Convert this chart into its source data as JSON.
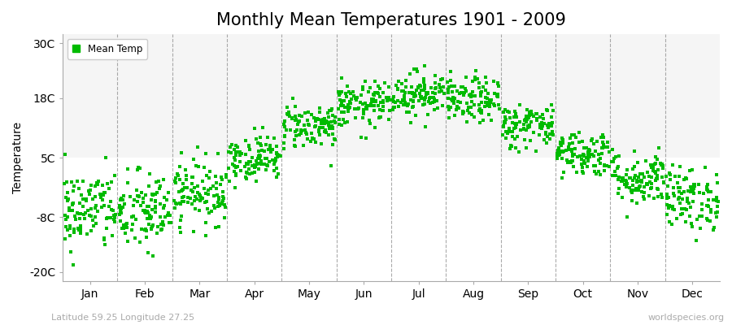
{
  "title": "Monthly Mean Temperatures 1901 - 2009",
  "ylabel": "Temperature",
  "xlabel_months": [
    "Jan",
    "Feb",
    "Mar",
    "Apr",
    "May",
    "Jun",
    "Jul",
    "Aug",
    "Sep",
    "Oct",
    "Nov",
    "Dec"
  ],
  "yticks": [
    -20,
    -8,
    5,
    18,
    30
  ],
  "ytick_labels": [
    "-20C",
    "-8C",
    "5C",
    "18C",
    "30C"
  ],
  "ylim": [
    -22,
    32
  ],
  "dot_color": "#00BB00",
  "dot_size": 6,
  "background_color": "#ffffff",
  "plot_bg_color": "#f5f5f5",
  "legend_label": "Mean Temp",
  "footer_left": "Latitude 59.25 Longitude 27.25",
  "footer_right": "worldspecies.org",
  "title_fontsize": 15,
  "axis_fontsize": 10,
  "monthly_means": [
    -6.5,
    -7.0,
    -2.5,
    5.0,
    12.0,
    16.5,
    19.0,
    17.5,
    12.0,
    6.0,
    0.5,
    -4.0
  ],
  "monthly_stds": [
    4.5,
    4.5,
    3.5,
    2.5,
    2.5,
    2.5,
    2.5,
    2.5,
    2.5,
    2.5,
    3.0,
    3.5
  ],
  "n_years": 109,
  "random_seed": 42
}
